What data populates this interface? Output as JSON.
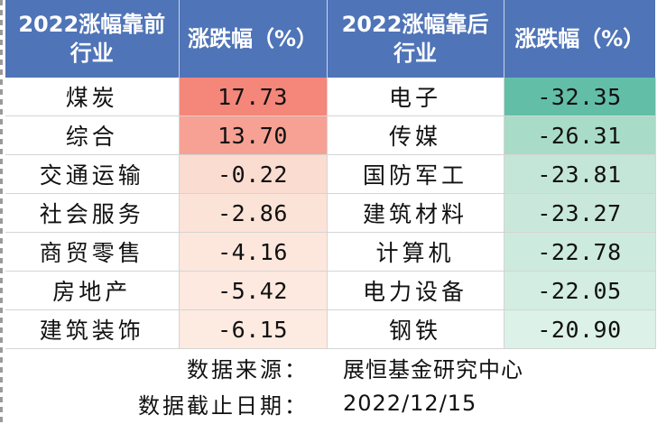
{
  "header": {
    "top_name": [
      "2022涨幅靠前",
      "行业"
    ],
    "top_change": "涨跌幅（%）",
    "bottom_name": [
      "2022涨幅靠后",
      "行业"
    ],
    "bottom_change": "涨跌幅（%）"
  },
  "rows": [
    {
      "top_industry": "煤炭",
      "top_value": "17.73",
      "top_color": "#f4867a",
      "bottom_industry": "电子",
      "bottom_value": "-32.35",
      "bottom_color": "#63bea8"
    },
    {
      "top_industry": "综合",
      "top_value": "13.70",
      "top_color": "#f6a194",
      "bottom_industry": "传媒",
      "bottom_value": "-26.31",
      "bottom_color": "#a9dbc9"
    },
    {
      "top_industry": "交通运输",
      "top_value": "-0.22",
      "top_color": "#fbdcd0",
      "bottom_industry": "国防军工",
      "bottom_value": "-23.81",
      "bottom_color": "#c4e6d8"
    },
    {
      "top_industry": "社会服务",
      "top_value": "-2.86",
      "top_color": "#fce3d8",
      "bottom_industry": "建筑材料",
      "bottom_value": "-23.27",
      "bottom_color": "#c9e8db"
    },
    {
      "top_industry": "商贸零售",
      "top_value": "-4.16",
      "top_color": "#fde7dd",
      "bottom_industry": "计算机",
      "bottom_value": "-22.78",
      "bottom_color": "#cdeade"
    },
    {
      "top_industry": "房地产",
      "top_value": "-5.42",
      "top_color": "#fde9df",
      "bottom_industry": "电力设备",
      "bottom_value": "-22.05",
      "bottom_color": "#d3ede2"
    },
    {
      "top_industry": "建筑装饰",
      "top_value": "-6.15",
      "top_color": "#fdeae1",
      "bottom_industry": "钢铁",
      "bottom_value": "-20.90",
      "bottom_color": "#dcf1e8"
    }
  ],
  "footer": {
    "source_label": "数据来源：",
    "source_value": "展恒基金研究中心",
    "date_label": "数据截止日期：",
    "date_value": "2022/12/15"
  }
}
